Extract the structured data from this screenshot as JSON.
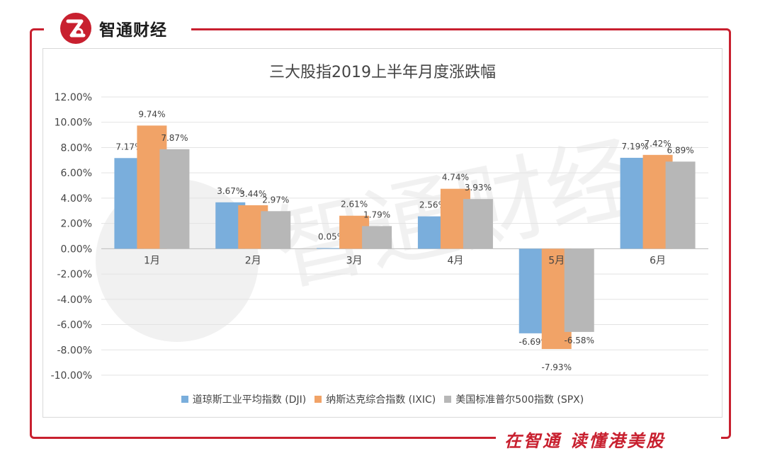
{
  "brand": {
    "name": "智通财经",
    "logo_icon": "zhitong-logo-icon",
    "accent": "#c8202f"
  },
  "slogan": "在智通 读懂港美股",
  "chart_data": {
    "type": "bar",
    "title": "三大股指2019上半年月度涨跌幅",
    "categories": [
      "1月",
      "2月",
      "3月",
      "4月",
      "5月",
      "6月"
    ],
    "series": [
      {
        "name": "道琼斯工业平均指数 (DJI)",
        "values": [
          7.17,
          3.67,
          0.05,
          2.56,
          -6.69,
          7.19
        ],
        "labels": [
          "7.17%",
          "3.67%",
          "0.05%",
          "2.56%",
          "-6.69%",
          "7.19%"
        ],
        "color": "#7aaedc"
      },
      {
        "name": "纳斯达克综合指数 (IXIC)",
        "values": [
          9.74,
          3.44,
          2.61,
          4.74,
          -7.93,
          7.42
        ],
        "labels": [
          "9.74%",
          "3.44%",
          "2.61%",
          "4.74%",
          "-7.93%",
          "7.42%"
        ],
        "color": "#f1a367"
      },
      {
        "name": "美国标准普尔500指数 (SPX)",
        "values": [
          7.87,
          2.97,
          1.79,
          3.93,
          -6.58,
          6.89
        ],
        "labels": [
          "7.87%",
          "2.97%",
          "1.79%",
          "3.93%",
          "-6.58%",
          "6.89%"
        ],
        "color": "#b7b7b7"
      }
    ],
    "ylim": [
      -10,
      12
    ],
    "yticks": [
      "12.00%",
      "10.00%",
      "8.00%",
      "6.00%",
      "4.00%",
      "2.00%",
      "0.00%",
      "-2.00%",
      "-4.00%",
      "-6.00%",
      "-8.00%",
      "-10.00%"
    ],
    "xlabel": "",
    "ylabel": "",
    "grid": true,
    "legend_position": "bottom"
  },
  "watermark": {
    "text": "智通财经"
  }
}
